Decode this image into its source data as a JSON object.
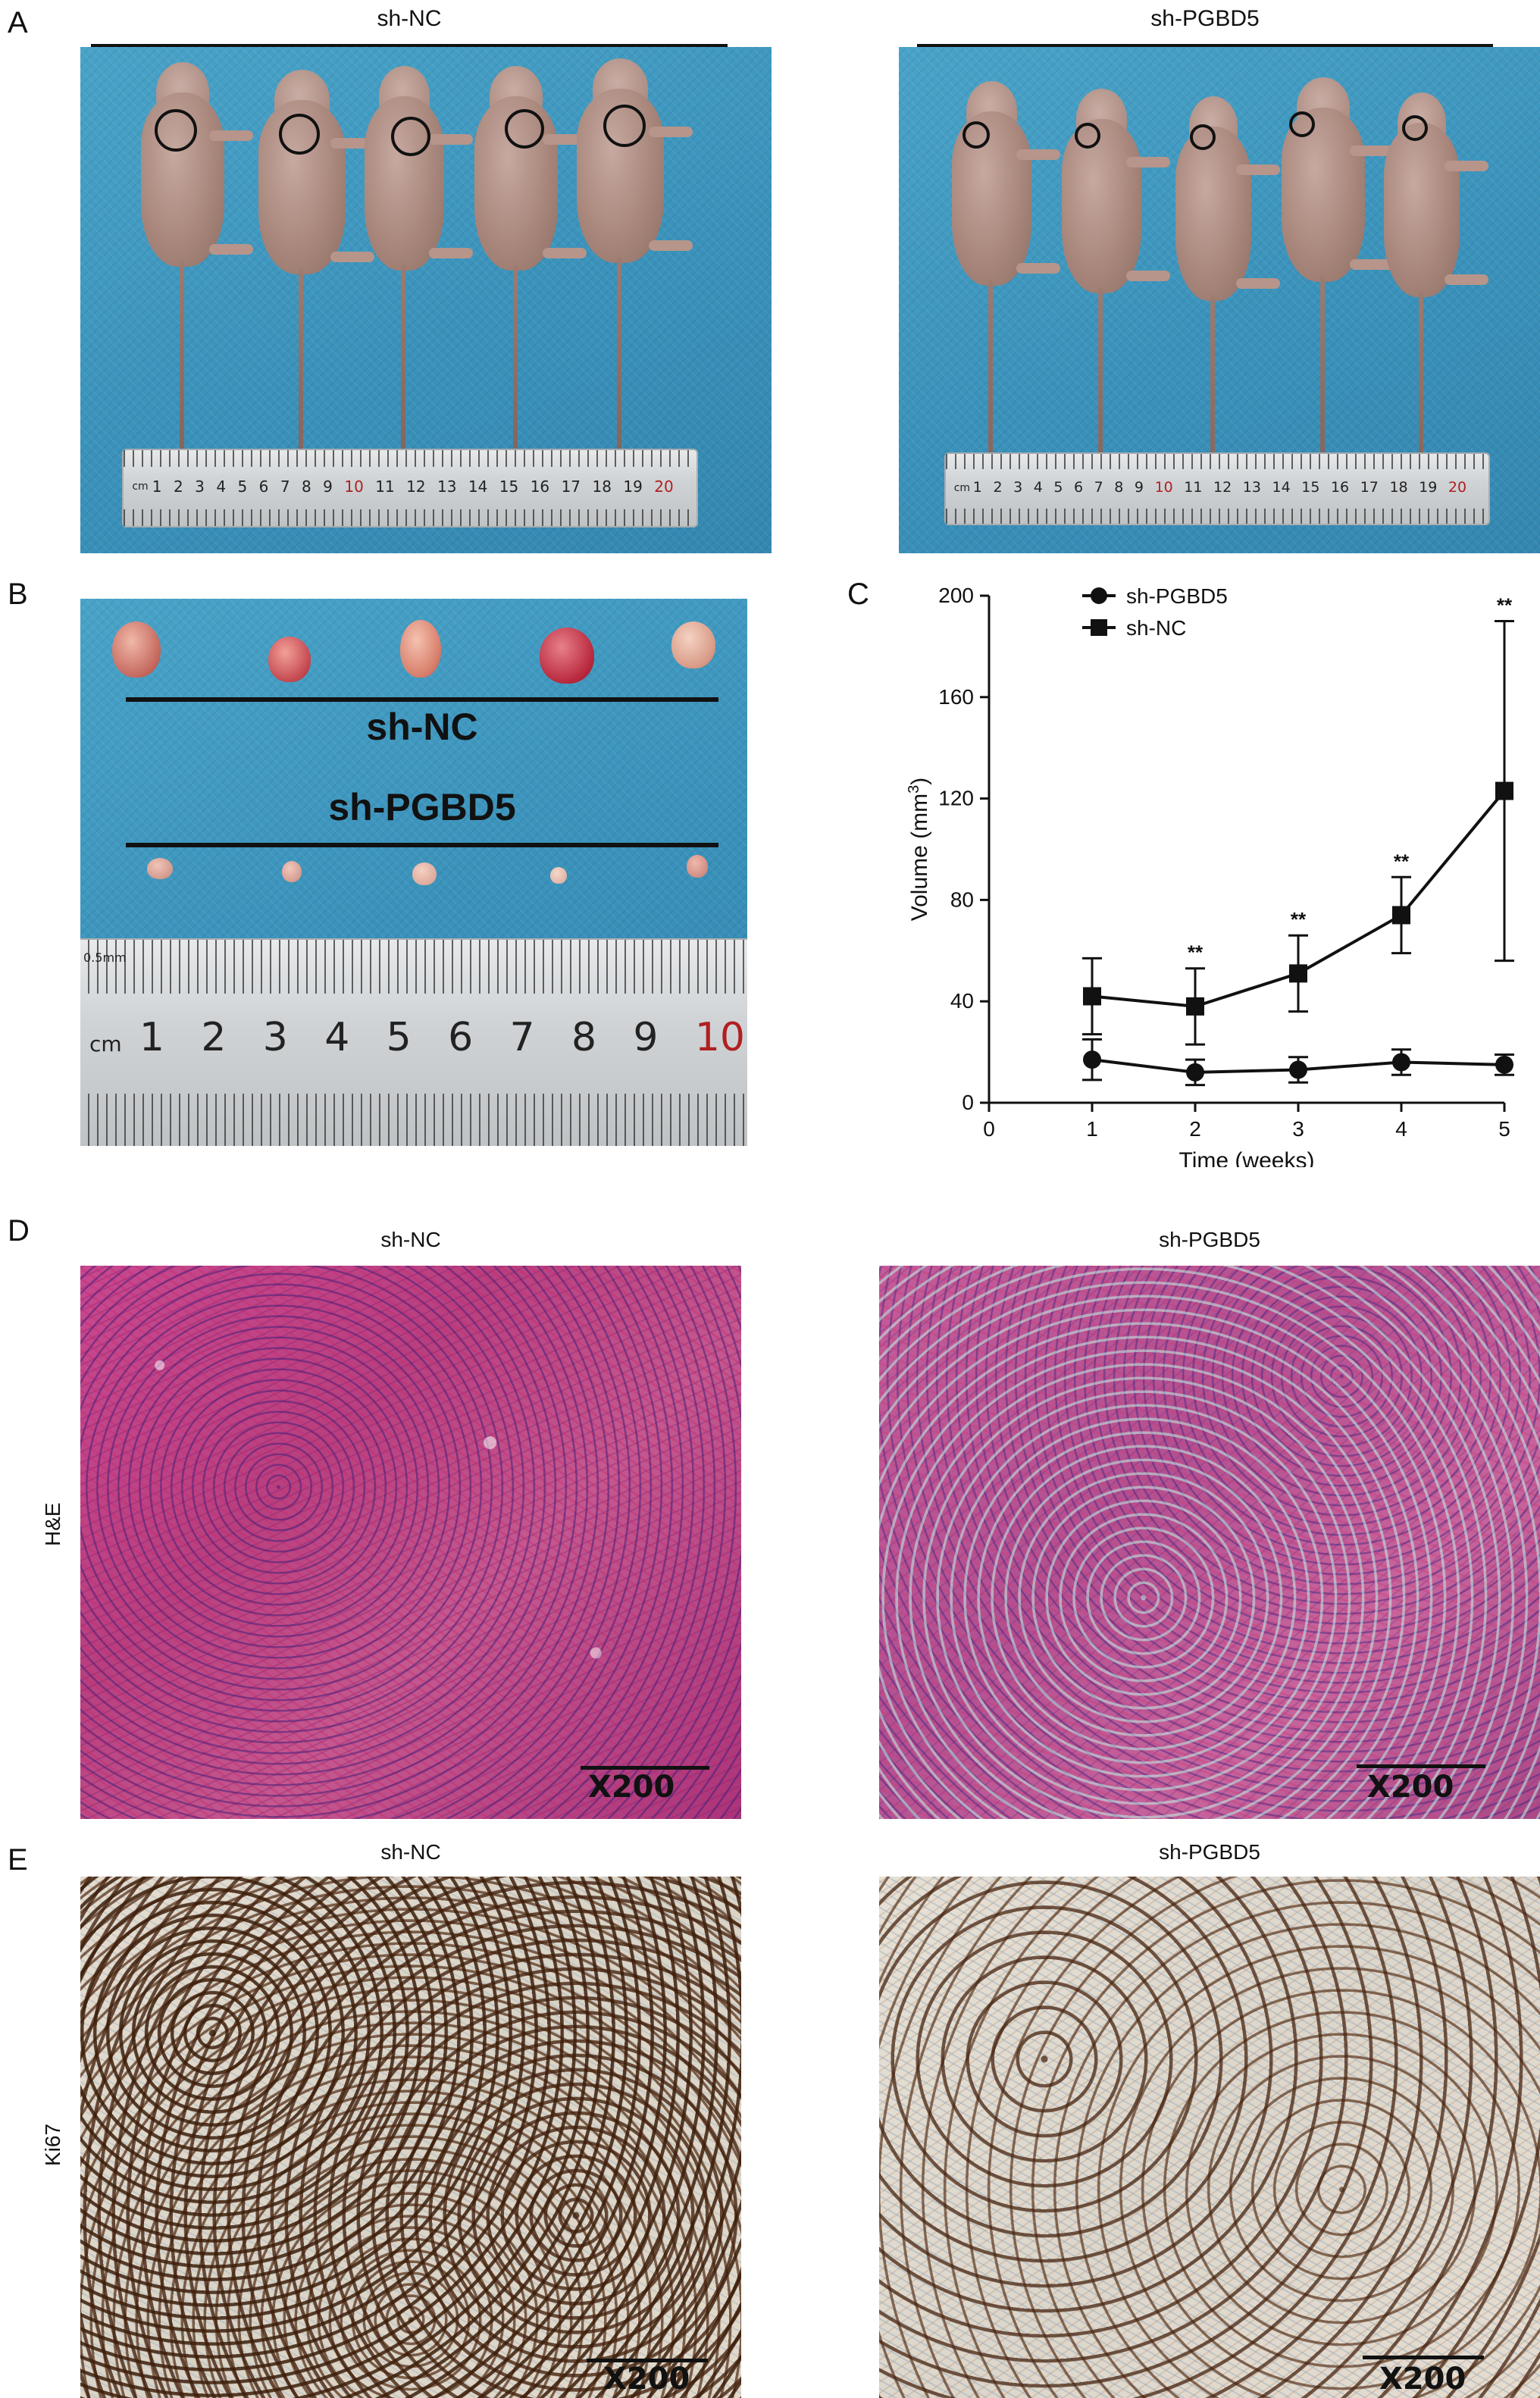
{
  "panels": {
    "A": {
      "letter": "A",
      "left_group": "sh-NC",
      "right_group": "sh-PGBD5",
      "ruler_unit": "cm",
      "ruler_numbers": [
        "1",
        "2",
        "3",
        "4",
        "5",
        "6",
        "7",
        "8",
        "9",
        "10",
        "11",
        "12",
        "13",
        "14",
        "15",
        "16",
        "17",
        "18",
        "19",
        "20"
      ]
    },
    "B": {
      "letter": "B",
      "top_label": "sh-NC",
      "bottom_label": "sh-PGBD5",
      "ruler_unit": "cm",
      "ruler_small": "0.5mm",
      "ruler_numbers": [
        "1",
        "2",
        "3",
        "4",
        "5",
        "6",
        "7",
        "8",
        "9",
        "10"
      ]
    },
    "C": {
      "letter": "C"
    },
    "D": {
      "letter": "D",
      "row_label": "H&E",
      "left_title": "sh-NC",
      "right_title": "sh-PGBD5",
      "magnification": "X200"
    },
    "E": {
      "letter": "E",
      "row_label": "Ki67",
      "left_title": "sh-NC",
      "right_title": "sh-PGBD5",
      "magnification": "X200"
    }
  },
  "colors": {
    "pad_blue": "#3a92bb",
    "he_pink": "#c0488a",
    "ki67_brown": "#5a2e12",
    "line_black": "#111111"
  },
  "chart_data": {
    "type": "line",
    "xlabel": "Time (weeks)",
    "ylabel_main": "Volume (mm",
    "ylabel_sup": "3",
    "ylabel_end": ")",
    "xlim": [
      0,
      5
    ],
    "ylim": [
      0,
      200
    ],
    "xticks": [
      0,
      1,
      2,
      3,
      4,
      5
    ],
    "yticks": [
      0,
      40,
      80,
      120,
      160,
      200
    ],
    "grid": false,
    "legend_position": "top-left",
    "series": [
      {
        "name": "sh-PGBD5",
        "marker": "circle",
        "x": [
          1,
          2,
          3,
          4,
          5
        ],
        "y": [
          17,
          12,
          13,
          16,
          15
        ],
        "err": [
          8,
          5,
          5,
          5,
          4
        ]
      },
      {
        "name": "sh-NC",
        "marker": "square",
        "x": [
          1,
          2,
          3,
          4,
          5
        ],
        "y": [
          42,
          38,
          51,
          74,
          123
        ],
        "err": [
          15,
          15,
          15,
          15,
          67
        ]
      }
    ],
    "annotations": [
      {
        "x": 2,
        "text": "**"
      },
      {
        "x": 3,
        "text": "**"
      },
      {
        "x": 4,
        "text": "**"
      },
      {
        "x": 5,
        "text": "**"
      }
    ]
  }
}
